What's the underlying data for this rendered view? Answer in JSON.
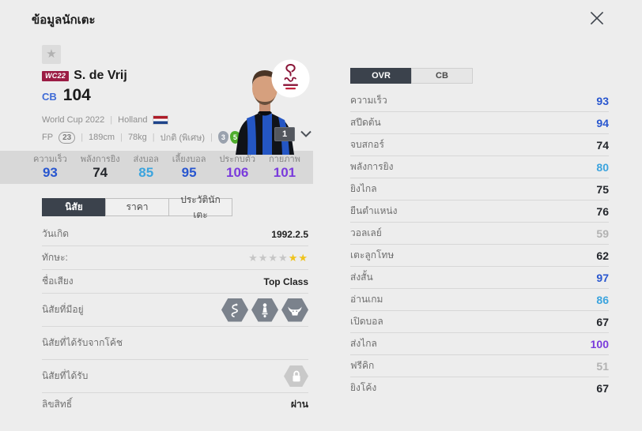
{
  "header": {
    "title": "ข้อมูลนักเตะ"
  },
  "icons": {
    "close": "✕",
    "favorite_star": "★",
    "chevron_down": "˅",
    "skill_star": "★"
  },
  "player": {
    "season_badge": "WC22",
    "name": "S. de Vrij",
    "position": "CB",
    "overall": "104",
    "league": "World Cup 2022",
    "nation": "Holland",
    "fp_label": "FP",
    "fp_value": "23",
    "height": "189cm",
    "weight": "78kg",
    "body_type": "ปกติ (พิเศษ)",
    "weak_foot": "3",
    "strong_foot": "5",
    "card_count": "1"
  },
  "summary_stats": [
    {
      "label": "ความเร็ว",
      "value": "93"
    },
    {
      "label": "พลังการยิง",
      "value": "74"
    },
    {
      "label": "ส่งบอล",
      "value": "85"
    },
    {
      "label": "เลี้ยงบอล",
      "value": "95"
    },
    {
      "label": "ประกบตัว",
      "value": "106"
    },
    {
      "label": "กายภาพ",
      "value": "101"
    }
  ],
  "left_tabs": [
    {
      "label": "นิสัย",
      "active": true
    },
    {
      "label": "ราคา",
      "active": false
    },
    {
      "label": "ประวัตินักเตะ",
      "active": false
    }
  ],
  "details": [
    {
      "type": "text",
      "label": "วันเกิด",
      "value": "1992.2.5"
    },
    {
      "type": "stars",
      "label": "ทักษะ:",
      "stars_gray": 4,
      "stars_yellow": 2
    },
    {
      "type": "text",
      "label": "ชื่อเสียง",
      "value": "Top Class"
    },
    {
      "type": "traits",
      "label": "นิสัยที่มีอยู่",
      "traits": [
        "snake-icon",
        "chess-piece-icon",
        "buffalo-icon"
      ]
    },
    {
      "type": "empty",
      "label": "นิสัยที่ได้รับจากโค้ช"
    },
    {
      "type": "locked",
      "label": "นิสัยที่ได้รับ"
    },
    {
      "type": "text",
      "label": "ลิขสิทธิ์",
      "value": "ผ่าน",
      "last": true
    }
  ],
  "right_tabs": [
    {
      "label": "OVR",
      "active": true
    },
    {
      "label": "CB",
      "active": false
    }
  ],
  "attributes": [
    {
      "label": "ความเร็ว",
      "value": "93"
    },
    {
      "label": "สปีดต้น",
      "value": "94"
    },
    {
      "label": "จบสกอร์",
      "value": "74"
    },
    {
      "label": "พลังการยิง",
      "value": "80"
    },
    {
      "label": "ยิงไกล",
      "value": "75"
    },
    {
      "label": "ยืนตำแหน่ง",
      "value": "76"
    },
    {
      "label": "วอลเลย์",
      "value": "59"
    },
    {
      "label": "เตะลูกโทษ",
      "value": "62"
    },
    {
      "label": "ส่งสั้น",
      "value": "97"
    },
    {
      "label": "อ่านเกม",
      "value": "86"
    },
    {
      "label": "เปิดบอล",
      "value": "67"
    },
    {
      "label": "ส่งไกล",
      "value": "100"
    },
    {
      "label": "ฟรีคิก",
      "value": "51"
    },
    {
      "label": "ยิงโค้ง",
      "value": "67"
    }
  ],
  "colors": {
    "purple": "#7a3bdc",
    "blue": "#2856cf",
    "lightblue": "#3ba4de",
    "dark": "#23262b",
    "gray": "#b2b2b2",
    "tab_active_bg": "#3b424c",
    "season_badge_bg": "#9b1c44",
    "strong_foot_green": "#4fae2d",
    "weak_foot_gray": "#9aa2ae"
  }
}
